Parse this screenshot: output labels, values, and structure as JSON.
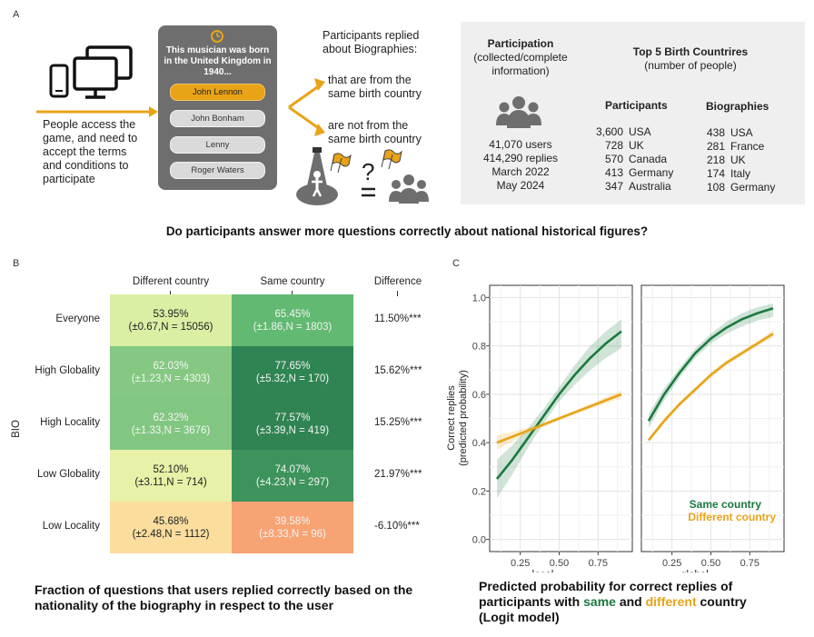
{
  "panel_a": {
    "letter": "A",
    "access_text": [
      "People access the",
      "game, and need to",
      "accept the terms",
      "and conditions to",
      "participate"
    ],
    "quiz": {
      "question": "This musician was born in the United Kingdom in 1940...",
      "options": [
        "John Lennon",
        "John Bonham",
        "Lenny",
        "Roger Waters"
      ],
      "selected_index": 0
    },
    "replied_title": [
      "Participants replied",
      "about Biographies:"
    ],
    "same_text": [
      "that are from the",
      "same birth country"
    ],
    "not_same_text": [
      "are not from the",
      "same birth country"
    ],
    "participation": {
      "title": "Participation",
      "subtitle": [
        "(collected/complete",
        "information)"
      ],
      "stats": [
        "41,070 users",
        "414,290 replies",
        "March 2022",
        "May 2024"
      ]
    },
    "top5": {
      "title": "Top 5 Birth Countrires",
      "subtitle": "(number of people)",
      "participants_label": "Participants",
      "biographies_label": "Biographies",
      "participants": [
        {
          "count": "3,600",
          "country": "USA"
        },
        {
          "count": "728",
          "country": "UK"
        },
        {
          "count": "570",
          "country": "Canada"
        },
        {
          "count": "413",
          "country": "Germany"
        },
        {
          "count": "347",
          "country": "Australia"
        }
      ],
      "biographies": [
        {
          "count": "438",
          "country": "USA"
        },
        {
          "count": "281",
          "country": "France"
        },
        {
          "count": "218",
          "country": "UK"
        },
        {
          "count": "174",
          "country": "Italy"
        },
        {
          "count": "108",
          "country": "Germany"
        }
      ]
    },
    "colors": {
      "accent": "#e8a317",
      "icon_grey": "#6e6e6e",
      "box_bg": "#efefef"
    }
  },
  "question": "Do participants answer more questions correctly about national historical figures?",
  "chart_data": [
    {
      "type": "heatmap",
      "panel": "B",
      "ylabel": "BIO",
      "columns": [
        "Different country",
        "Same country"
      ],
      "difference_header": "Difference",
      "rows": [
        {
          "label": "Everyone",
          "diff": "11.50%***",
          "cells": [
            {
              "pct": "53.95%",
              "ci": "(±0.67,",
              "n": "N = 15056)",
              "value": 53.95
            },
            {
              "pct": "65.45%",
              "ci": "(±1.86,",
              "n": "N = 1803)",
              "value": 65.45
            }
          ]
        },
        {
          "label": "High Globality",
          "diff": "15.62%***",
          "cells": [
            {
              "pct": "62.03%",
              "ci": "(±1.23,",
              "n": "N = 4303)",
              "value": 62.03
            },
            {
              "pct": "77.65%",
              "ci": "(±5.32,",
              "n": "N = 170)",
              "value": 77.65
            }
          ]
        },
        {
          "label": "High Locality",
          "diff": "15.25%***",
          "cells": [
            {
              "pct": "62.32%",
              "ci": "(±1.33,",
              "n": "N = 3676)",
              "value": 62.32
            },
            {
              "pct": "77.57%",
              "ci": "(±3.39,",
              "n": "N = 419)",
              "value": 77.57
            }
          ]
        },
        {
          "label": "Low Globality",
          "diff": "21.97%***",
          "cells": [
            {
              "pct": "52.10%",
              "ci": "(±3.11,",
              "n": "N = 714)",
              "value": 52.1
            },
            {
              "pct": "74.07%",
              "ci": "(±4.23,",
              "n": "N = 297)",
              "value": 74.07
            }
          ]
        },
        {
          "label": "Low Locality",
          "diff": "-6.10%***",
          "cells": [
            {
              "pct": "45.68%",
              "ci": "(±2.48,",
              "n": "N = 1112)",
              "value": 45.68
            },
            {
              "pct": "39.58%",
              "ci": "(±8.33,",
              "n": "N = 96)",
              "value": 39.58
            }
          ]
        }
      ],
      "caption": [
        "Fraction of questions that users replied correctly based on the",
        "nationality of the biography in respect to the user"
      ]
    },
    {
      "type": "line",
      "panel": "C",
      "ylabel": [
        "Correct replies",
        "(predicted probability)"
      ],
      "ylim": [
        0,
        1
      ],
      "yticks": [
        "0.0",
        "0.2",
        "0.4",
        "0.6",
        "0.8",
        "1.0"
      ],
      "xticks": [
        "0.25",
        "0.50",
        "0.75"
      ],
      "grid": true,
      "legend": "bottom-right",
      "facets": [
        {
          "xlabel": "local",
          "xlim": [
            0.0,
            1.0
          ],
          "series": [
            {
              "name": "Same country",
              "x": [
                0.1,
                0.2,
                0.3,
                0.4,
                0.5,
                0.6,
                0.7,
                0.8,
                0.9
              ],
              "y": [
                0.25,
                0.33,
                0.42,
                0.51,
                0.6,
                0.68,
                0.75,
                0.81,
                0.86
              ],
              "lo": [
                0.17,
                0.27,
                0.38,
                0.48,
                0.57,
                0.64,
                0.7,
                0.75,
                0.79
              ],
              "hi": [
                0.33,
                0.39,
                0.46,
                0.54,
                0.63,
                0.72,
                0.8,
                0.86,
                0.91
              ]
            },
            {
              "name": "Different country",
              "x": [
                0.1,
                0.2,
                0.3,
                0.4,
                0.5,
                0.6,
                0.7,
                0.8,
                0.9
              ],
              "y": [
                0.4,
                0.425,
                0.45,
                0.475,
                0.5,
                0.525,
                0.55,
                0.575,
                0.6
              ],
              "lo": [
                0.37,
                0.405,
                0.437,
                0.466,
                0.493,
                0.517,
                0.54,
                0.562,
                0.584
              ],
              "hi": [
                0.43,
                0.445,
                0.463,
                0.484,
                0.507,
                0.533,
                0.56,
                0.588,
                0.616
              ]
            }
          ]
        },
        {
          "xlabel": "global",
          "xlim": [
            0.0,
            1.0
          ],
          "series": [
            {
              "name": "Same country",
              "x": [
                0.1,
                0.2,
                0.3,
                0.4,
                0.5,
                0.6,
                0.7,
                0.8,
                0.9
              ],
              "y": [
                0.49,
                0.6,
                0.69,
                0.77,
                0.83,
                0.875,
                0.91,
                0.935,
                0.955
              ],
              "lo": [
                0.46,
                0.575,
                0.67,
                0.75,
                0.81,
                0.85,
                0.88,
                0.905,
                0.92
              ],
              "hi": [
                0.52,
                0.625,
                0.71,
                0.79,
                0.85,
                0.9,
                0.935,
                0.96,
                0.975
              ]
            },
            {
              "name": "Different country",
              "x": [
                0.1,
                0.2,
                0.3,
                0.4,
                0.5,
                0.6,
                0.7,
                0.8,
                0.9
              ],
              "y": [
                0.41,
                0.49,
                0.56,
                0.62,
                0.68,
                0.73,
                0.77,
                0.81,
                0.85
              ],
              "lo": [
                0.4,
                0.48,
                0.55,
                0.61,
                0.67,
                0.72,
                0.76,
                0.8,
                0.835
              ],
              "hi": [
                0.42,
                0.5,
                0.57,
                0.63,
                0.69,
                0.74,
                0.78,
                0.82,
                0.865
              ]
            }
          ]
        }
      ],
      "legend_entries": [
        "Same country",
        "Different country"
      ],
      "colors": {
        "same": "#1b7a3e",
        "different": "#e8a317"
      },
      "caption": {
        "line1": "Predicted probability for correct replies of",
        "pre": "participants with ",
        "same": "same",
        "and": " and ",
        "different": "different",
        "post": " country",
        "line3": "(Logit model)"
      }
    }
  ],
  "panel_letters": {
    "b": "B",
    "c": "C"
  }
}
